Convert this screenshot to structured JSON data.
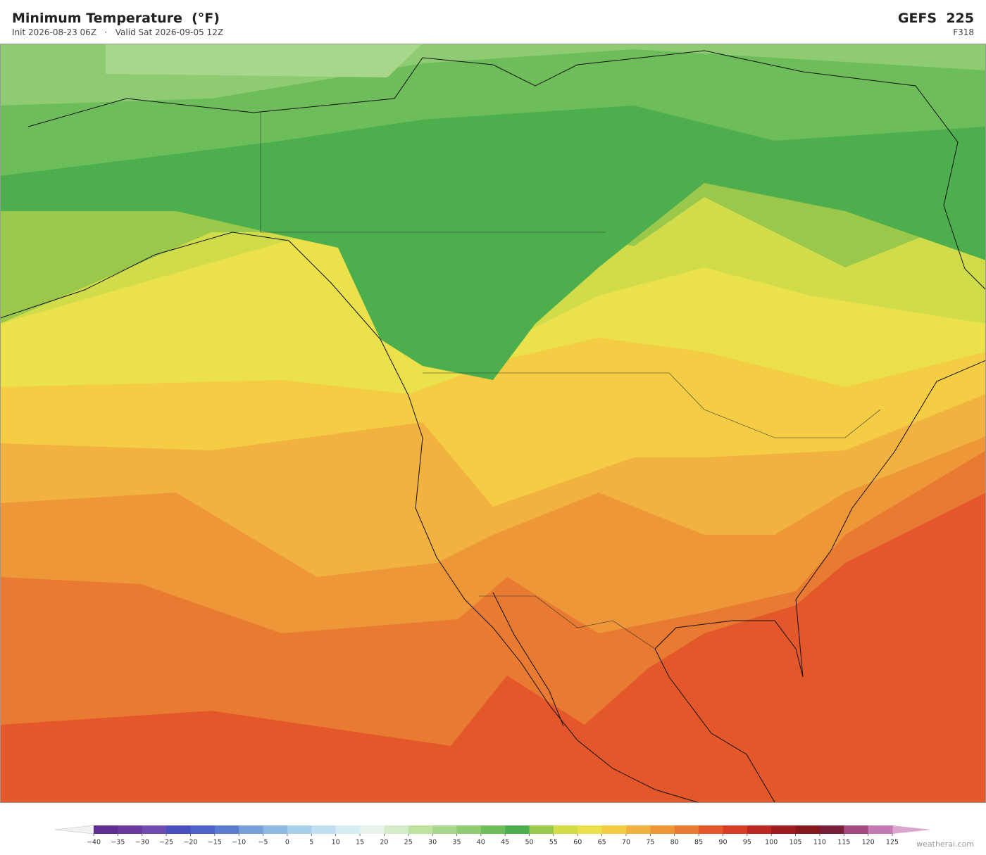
{
  "header": {
    "title": "Minimum Temperature  (°F)",
    "init": "Init 2026-08-23 06Z",
    "separator": "·",
    "valid": "Valid Sat 2026-09-05 12Z",
    "model": "GEFS  225",
    "forecast_hour": "F318"
  },
  "colorbar": {
    "ticks": [
      {
        "value": -40,
        "label": "−40"
      },
      {
        "value": -35,
        "label": "−35"
      },
      {
        "value": -30,
        "label": "−30"
      },
      {
        "value": -25,
        "label": "−25"
      },
      {
        "value": -20,
        "label": "−20"
      },
      {
        "value": -15,
        "label": "−15"
      },
      {
        "value": -10,
        "label": "−10"
      },
      {
        "value": -5,
        "label": "−5"
      },
      0,
      5,
      10,
      15,
      20,
      25,
      30,
      35,
      40,
      45,
      50,
      55,
      60,
      65,
      70,
      75,
      80,
      85,
      90,
      95,
      100,
      105,
      110,
      115,
      120,
      125
    ],
    "colors": [
      "#5e2f92",
      "#6a3a9f",
      "#6f4cb0",
      "#4a4fbe",
      "#4f62c9",
      "#5a7bcf",
      "#77a0d9",
      "#8cb8e2",
      "#a8d0ea",
      "#c2dff0",
      "#d8ecf3",
      "#e6f2ea",
      "#d6ecc9",
      "#c0e2a0",
      "#a8d68a",
      "#8fcb72",
      "#6dbd5b",
      "#4cae4c",
      "#99c84a",
      "#d1dc4a",
      "#ebe14a",
      "#f4cd45",
      "#f1b23f",
      "#ed9738",
      "#e97a31",
      "#e3572b",
      "#d63c26",
      "#bb2723",
      "#9e1c1f",
      "#84181c",
      "#7a1f3a",
      "#a44a80",
      "#c27ab0"
    ],
    "under_color": "#f2f2f2",
    "over_color": "#d9a6d0"
  },
  "credit": "weatherai.com"
}
